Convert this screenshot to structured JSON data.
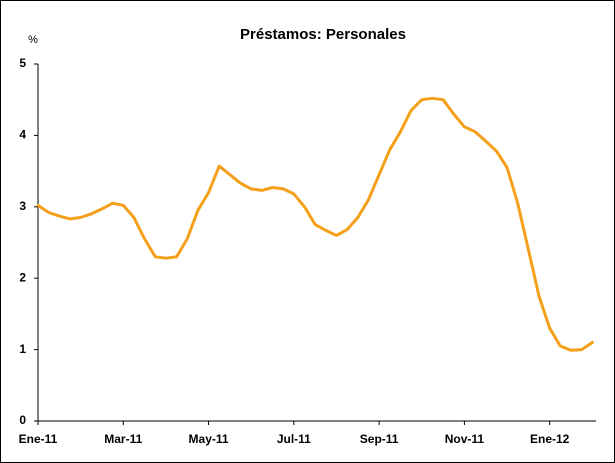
{
  "chart_data": {
    "type": "line",
    "title": "Préstamos: Personales",
    "y_label": "%",
    "categories": [
      "Ene-11",
      null,
      null,
      null,
      null,
      null,
      null,
      null,
      "Mar-11",
      null,
      null,
      null,
      null,
      null,
      null,
      null,
      "May-11",
      null,
      null,
      null,
      null,
      null,
      null,
      null,
      "Jul-11",
      null,
      null,
      null,
      null,
      null,
      null,
      null,
      "Sep-11",
      null,
      null,
      null,
      null,
      null,
      null,
      null,
      "Nov-11",
      null,
      null,
      null,
      null,
      null,
      null,
      null,
      "Ene-12",
      null,
      null,
      null,
      null
    ],
    "series": [
      {
        "name": "Préstamos: Personales",
        "color": "#f5a01a",
        "values": [
          3.02,
          2.92,
          2.87,
          2.83,
          2.85,
          2.9,
          2.97,
          3.05,
          3.02,
          2.85,
          2.55,
          2.3,
          2.28,
          2.3,
          2.55,
          2.95,
          3.2,
          3.57,
          3.45,
          3.33,
          3.25,
          3.23,
          3.27,
          3.25,
          3.18,
          3.0,
          2.75,
          2.67,
          2.6,
          2.68,
          2.85,
          3.1,
          3.45,
          3.8,
          4.05,
          4.35,
          4.5,
          4.52,
          4.5,
          4.3,
          4.12,
          4.05,
          3.92,
          3.78,
          3.55,
          3.05,
          2.4,
          1.75,
          1.3,
          1.05,
          0.99,
          1.0,
          1.1
        ]
      }
    ],
    "ylim": [
      0,
      5
    ],
    "yticks": [
      0,
      1,
      2,
      3,
      4,
      5
    ],
    "grid": false
  }
}
